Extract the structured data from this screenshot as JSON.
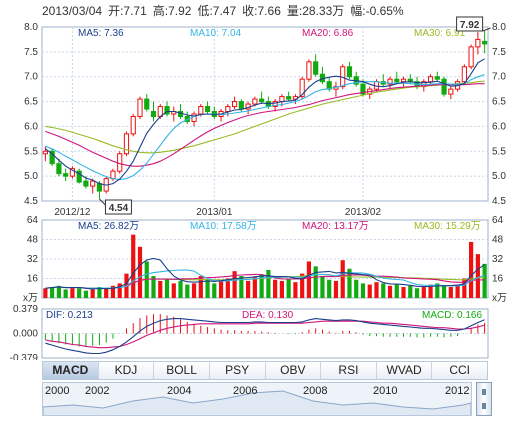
{
  "header": {
    "date": "2013/03/04",
    "open": "开:7.71",
    "high": "高:7.92",
    "low": "低:7.47",
    "close": "收:7.66",
    "volume": "量:28.33万",
    "change": "幅:-0.65%"
  },
  "colors": {
    "up": "#ee1111",
    "down": "#11aa11",
    "ma5": "#1a3f8c",
    "ma10": "#33b5e5",
    "ma20": "#d0147a",
    "ma30": "#99bb22",
    "dif": "#1a3f8c",
    "dea": "#d0147a",
    "grid": "#c8d6e8"
  },
  "tabs": [
    {
      "label": "MACD",
      "active": true
    },
    {
      "label": "KDJ",
      "active": false
    },
    {
      "label": "BOLL",
      "active": false
    },
    {
      "label": "PSY",
      "active": false
    },
    {
      "label": "OBV",
      "active": false
    },
    {
      "label": "RSI",
      "active": false
    },
    {
      "label": "WVAD",
      "active": false
    },
    {
      "label": "CCI",
      "active": false
    }
  ],
  "timeline": {
    "years": [
      "2000",
      "2002",
      "2004",
      "2006",
      "2008",
      "2010",
      "2012"
    ]
  },
  "chart_data": [
    {
      "type": "candlestick",
      "ylim": [
        4.5,
        8.0
      ],
      "y_ticks": [
        "4.5",
        "5.0",
        "5.5",
        "6.0",
        "6.5",
        "7.0",
        "7.5",
        "8.0"
      ],
      "x_labels": [
        "2012/12",
        "2013/01",
        "2013/02"
      ],
      "legend": [
        "MA5: 7.36",
        "MA10: 7.04",
        "MA20: 6.86",
        "MA30: 6.91"
      ],
      "annotations": {
        "max": "7.92",
        "min": "4.54"
      },
      "candles": [
        [
          5.45,
          5.6,
          5.3,
          5.5
        ],
        [
          5.5,
          5.55,
          5.2,
          5.25
        ],
        [
          5.25,
          5.35,
          5.0,
          5.05
        ],
        [
          5.05,
          5.15,
          4.9,
          5.0
        ],
        [
          5.0,
          5.2,
          4.95,
          5.15
        ],
        [
          5.1,
          5.15,
          4.85,
          4.88
        ],
        [
          4.9,
          5.0,
          4.75,
          4.8
        ],
        [
          4.8,
          4.95,
          4.65,
          4.9
        ],
        [
          4.85,
          4.9,
          4.54,
          4.7
        ],
        [
          4.7,
          5.0,
          4.65,
          4.95
        ],
        [
          4.95,
          5.15,
          4.9,
          5.1
        ],
        [
          5.1,
          5.5,
          5.05,
          5.45
        ],
        [
          5.45,
          5.9,
          5.4,
          5.85
        ],
        [
          5.85,
          6.25,
          5.8,
          6.2
        ],
        [
          6.2,
          6.6,
          6.15,
          6.55
        ],
        [
          6.55,
          6.65,
          6.3,
          6.35
        ],
        [
          6.3,
          6.5,
          6.1,
          6.2
        ],
        [
          6.2,
          6.45,
          6.15,
          6.4
        ],
        [
          6.4,
          6.5,
          6.2,
          6.25
        ],
        [
          6.25,
          6.4,
          6.1,
          6.3
        ],
        [
          6.3,
          6.45,
          6.15,
          6.2
        ],
        [
          6.2,
          6.3,
          6.05,
          6.1
        ],
        [
          6.1,
          6.3,
          6.0,
          6.25
        ],
        [
          6.25,
          6.45,
          6.2,
          6.4
        ],
        [
          6.4,
          6.5,
          6.25,
          6.3
        ],
        [
          6.3,
          6.4,
          6.15,
          6.2
        ],
        [
          6.2,
          6.35,
          6.1,
          6.3
        ],
        [
          6.3,
          6.45,
          6.2,
          6.4
        ],
        [
          6.4,
          6.6,
          6.35,
          6.5
        ],
        [
          6.5,
          6.55,
          6.3,
          6.35
        ],
        [
          6.35,
          6.5,
          6.25,
          6.45
        ],
        [
          6.45,
          6.6,
          6.4,
          6.55
        ],
        [
          6.55,
          6.7,
          6.45,
          6.5
        ],
        [
          6.5,
          6.6,
          6.35,
          6.4
        ],
        [
          6.4,
          6.55,
          6.3,
          6.5
        ],
        [
          6.5,
          6.65,
          6.4,
          6.6
        ],
        [
          6.6,
          6.7,
          6.5,
          6.55
        ],
        [
          6.55,
          6.65,
          6.45,
          6.6
        ],
        [
          6.6,
          7.0,
          6.55,
          6.95
        ],
        [
          6.95,
          7.35,
          6.9,
          7.3
        ],
        [
          7.3,
          7.45,
          7.0,
          7.05
        ],
        [
          7.05,
          7.2,
          6.85,
          6.9
        ],
        [
          6.9,
          7.0,
          6.7,
          6.75
        ],
        [
          6.75,
          6.9,
          6.6,
          6.8
        ],
        [
          6.8,
          7.25,
          6.75,
          7.2
        ],
        [
          7.2,
          7.3,
          6.95,
          7.0
        ],
        [
          7.0,
          7.1,
          6.8,
          6.85
        ],
        [
          6.85,
          6.95,
          6.6,
          6.65
        ],
        [
          6.65,
          6.8,
          6.55,
          6.75
        ],
        [
          6.75,
          6.95,
          6.7,
          6.9
        ],
        [
          6.9,
          7.05,
          6.8,
          6.85
        ],
        [
          6.85,
          7.0,
          6.75,
          6.95
        ],
        [
          6.95,
          7.1,
          6.85,
          6.9
        ],
        [
          6.9,
          7.0,
          6.8,
          6.95
        ],
        [
          6.95,
          7.05,
          6.85,
          6.9
        ],
        [
          6.9,
          7.0,
          6.75,
          6.8
        ],
        [
          6.8,
          6.95,
          6.7,
          6.9
        ],
        [
          6.9,
          7.05,
          6.85,
          7.0
        ],
        [
          7.0,
          7.1,
          6.9,
          6.95
        ],
        [
          6.95,
          7.0,
          6.6,
          6.65
        ],
        [
          6.65,
          6.8,
          6.55,
          6.75
        ],
        [
          6.75,
          6.95,
          6.7,
          6.9
        ],
        [
          6.9,
          7.25,
          6.85,
          7.2
        ],
        [
          7.2,
          7.65,
          7.15,
          7.6
        ],
        [
          7.6,
          7.9,
          7.45,
          7.75
        ],
        [
          7.71,
          7.92,
          7.47,
          7.66
        ]
      ],
      "ma5": [
        5.55,
        5.45,
        5.32,
        5.2,
        5.12,
        5.05,
        4.96,
        4.92,
        4.85,
        4.82,
        4.85,
        4.94,
        5.1,
        5.3,
        5.58,
        5.86,
        6.04,
        6.2,
        6.3,
        6.3,
        6.27,
        6.23,
        6.21,
        6.24,
        6.25,
        6.24,
        6.25,
        6.29,
        6.33,
        6.34,
        6.38,
        6.43,
        6.47,
        6.46,
        6.47,
        6.5,
        6.51,
        6.53,
        6.64,
        6.79,
        6.9,
        6.96,
        6.99,
        7.01,
        6.99,
        6.93,
        6.92,
        6.9,
        6.85,
        6.81,
        6.8,
        6.82,
        6.86,
        6.89,
        6.9,
        6.88,
        6.88,
        6.89,
        6.91,
        6.86,
        6.81,
        6.82,
        6.86,
        7.06,
        7.28,
        7.36
      ],
      "ma10": [
        5.6,
        5.55,
        5.48,
        5.4,
        5.33,
        5.25,
        5.18,
        5.11,
        5.05,
        4.99,
        4.95,
        4.93,
        4.95,
        5.01,
        5.12,
        5.26,
        5.44,
        5.62,
        5.8,
        5.96,
        6.07,
        6.14,
        6.2,
        6.24,
        6.25,
        6.25,
        6.24,
        6.25,
        6.27,
        6.29,
        6.31,
        6.34,
        6.37,
        6.4,
        6.42,
        6.44,
        6.47,
        6.5,
        6.55,
        6.62,
        6.7,
        6.74,
        6.76,
        6.79,
        6.82,
        6.86,
        6.88,
        6.9,
        6.9,
        6.9,
        6.88,
        6.87,
        6.87,
        6.87,
        6.86,
        6.85,
        6.84,
        6.85,
        6.86,
        6.86,
        6.85,
        6.85,
        6.86,
        6.94,
        7.0,
        7.04
      ],
      "ma20": [
        5.9,
        5.85,
        5.8,
        5.74,
        5.68,
        5.62,
        5.55,
        5.48,
        5.42,
        5.36,
        5.3,
        5.25,
        5.22,
        5.2,
        5.2,
        5.22,
        5.25,
        5.3,
        5.37,
        5.45,
        5.54,
        5.63,
        5.72,
        5.81,
        5.89,
        5.96,
        6.02,
        6.08,
        6.13,
        6.18,
        6.22,
        6.25,
        6.28,
        6.3,
        6.32,
        6.34,
        6.36,
        6.38,
        6.41,
        6.44,
        6.48,
        6.52,
        6.55,
        6.58,
        6.61,
        6.64,
        6.66,
        6.68,
        6.7,
        6.72,
        6.74,
        6.76,
        6.78,
        6.79,
        6.8,
        6.81,
        6.82,
        6.83,
        6.84,
        6.84,
        6.84,
        6.84,
        6.84,
        6.85,
        6.86,
        6.86
      ],
      "ma30": [
        6.0,
        5.98,
        5.95,
        5.92,
        5.88,
        5.84,
        5.8,
        5.76,
        5.71,
        5.66,
        5.61,
        5.57,
        5.53,
        5.5,
        5.48,
        5.47,
        5.47,
        5.48,
        5.5,
        5.52,
        5.55,
        5.58,
        5.61,
        5.65,
        5.69,
        5.73,
        5.77,
        5.81,
        5.85,
        5.9,
        5.95,
        6.0,
        6.05,
        6.1,
        6.15,
        6.2,
        6.25,
        6.29,
        6.33,
        6.37,
        6.41,
        6.45,
        6.48,
        6.51,
        6.54,
        6.57,
        6.6,
        6.63,
        6.66,
        6.69,
        6.71,
        6.73,
        6.75,
        6.77,
        6.79,
        6.8,
        6.81,
        6.82,
        6.83,
        6.84,
        6.85,
        6.86,
        6.87,
        6.88,
        6.9,
        6.91
      ]
    },
    {
      "type": "bar",
      "ylim": [
        0,
        64
      ],
      "y_ticks": [
        "64",
        "48",
        "32",
        "16",
        "x万"
      ],
      "legend": [
        "MA5: 26.82万",
        "MA10: 17.58万",
        "MA20: 13.17万",
        "MA30: 15.29万"
      ],
      "values": [
        8,
        9,
        10,
        7,
        9,
        8,
        6,
        7,
        9,
        8,
        10,
        12,
        20,
        52,
        42,
        30,
        18,
        14,
        16,
        12,
        14,
        11,
        12,
        18,
        15,
        12,
        14,
        16,
        22,
        18,
        14,
        17,
        19,
        23,
        15,
        14,
        16,
        13,
        20,
        30,
        26,
        18,
        15,
        14,
        31,
        24,
        15,
        12,
        11,
        13,
        12,
        10,
        11,
        9,
        10,
        8,
        9,
        11,
        12,
        10,
        9,
        11,
        16,
        46,
        36,
        28
      ]
    },
    {
      "type": "bar",
      "subtype": "macd",
      "ylim": [
        -0.379,
        0.379
      ],
      "y_ticks": [
        "0.379",
        "0.000",
        "-0.379"
      ],
      "legend": [
        "DIF: 0.213",
        "DEA: 0.130",
        "MACD: 0.166"
      ],
      "macd": [
        -0.1,
        -0.12,
        -0.15,
        -0.17,
        -0.18,
        -0.2,
        -0.2,
        -0.19,
        -0.18,
        -0.14,
        -0.08,
        0.0,
        0.08,
        0.16,
        0.24,
        0.28,
        0.3,
        0.3,
        0.28,
        0.26,
        0.22,
        0.18,
        0.15,
        0.12,
        0.1,
        0.08,
        0.06,
        0.05,
        0.05,
        0.04,
        0.04,
        0.04,
        0.03,
        0.02,
        0.01,
        0.0,
        -0.01,
        -0.01,
        0.02,
        0.06,
        0.08,
        0.06,
        0.03,
        0.01,
        0.04,
        0.04,
        0.02,
        -0.02,
        -0.04,
        -0.04,
        -0.05,
        -0.05,
        -0.05,
        -0.05,
        -0.05,
        -0.06,
        -0.06,
        -0.05,
        -0.05,
        -0.06,
        -0.05,
        -0.04,
        0.0,
        0.08,
        0.14,
        0.166
      ],
      "dif": [
        -0.15,
        -0.18,
        -0.21,
        -0.24,
        -0.26,
        -0.28,
        -0.3,
        -0.31,
        -0.31,
        -0.29,
        -0.25,
        -0.2,
        -0.13,
        -0.05,
        0.04,
        0.11,
        0.16,
        0.2,
        0.22,
        0.23,
        0.23,
        0.22,
        0.21,
        0.2,
        0.19,
        0.18,
        0.17,
        0.17,
        0.17,
        0.17,
        0.17,
        0.18,
        0.18,
        0.17,
        0.17,
        0.17,
        0.17,
        0.17,
        0.18,
        0.21,
        0.23,
        0.22,
        0.21,
        0.2,
        0.21,
        0.21,
        0.2,
        0.18,
        0.16,
        0.15,
        0.14,
        0.13,
        0.12,
        0.11,
        0.1,
        0.09,
        0.08,
        0.08,
        0.07,
        0.06,
        0.05,
        0.05,
        0.07,
        0.12,
        0.17,
        0.213
      ],
      "dea": [
        -0.1,
        -0.12,
        -0.13,
        -0.15,
        -0.17,
        -0.18,
        -0.2,
        -0.21,
        -0.22,
        -0.22,
        -0.21,
        -0.2,
        -0.17,
        -0.13,
        -0.08,
        -0.03,
        0.01,
        0.05,
        0.08,
        0.1,
        0.12,
        0.13,
        0.14,
        0.15,
        0.15,
        0.15,
        0.15,
        0.15,
        0.15,
        0.15,
        0.15,
        0.16,
        0.16,
        0.16,
        0.16,
        0.16,
        0.16,
        0.16,
        0.16,
        0.17,
        0.18,
        0.19,
        0.19,
        0.19,
        0.19,
        0.19,
        0.19,
        0.19,
        0.18,
        0.17,
        0.16,
        0.16,
        0.15,
        0.14,
        0.13,
        0.12,
        0.11,
        0.1,
        0.09,
        0.09,
        0.08,
        0.07,
        0.07,
        0.08,
        0.1,
        0.13
      ]
    }
  ]
}
